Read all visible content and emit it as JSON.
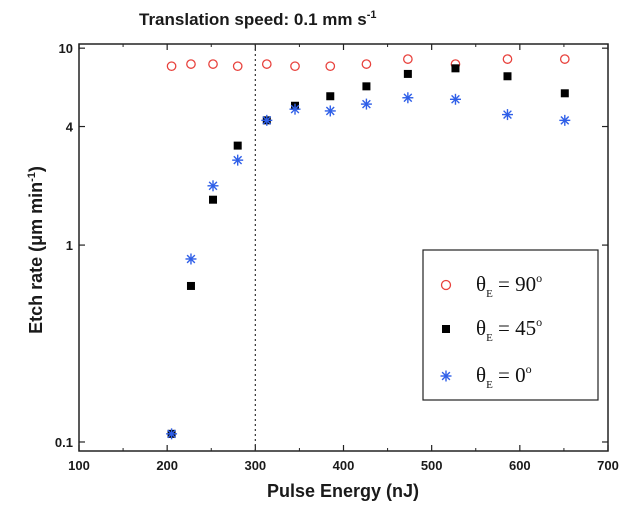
{
  "chart_data": {
    "type": "scatter",
    "title": "Translation speed: 0.1 mm s",
    "title_sup": "-1",
    "xlabel": "Pulse Energy (nJ)",
    "ylabel": "Etch rate (μm min",
    "ylabel_sup": "-1",
    "ylabel_close": ")",
    "xlim": [
      100,
      700
    ],
    "ylim": [
      0.09,
      10.5
    ],
    "yscale": "log",
    "xticks": [
      100,
      200,
      300,
      400,
      500,
      600,
      700
    ],
    "yticks": [
      0.1,
      1,
      4,
      10
    ],
    "yticklabels": [
      "0.1",
      "1",
      "4",
      "10"
    ],
    "vline": 300,
    "grid": false,
    "legend_position": "bottom-right",
    "series": [
      {
        "name": "θE = 90°",
        "marker": "open-circle",
        "color": "#e8413c",
        "legend_main": "θ",
        "legend_sub": "E",
        "legend_eq": " = 90",
        "legend_sup": "o",
        "x": [
          205,
          227,
          252,
          280,
          313,
          345,
          385,
          426,
          473,
          527,
          586,
          651
        ],
        "y": [
          8.1,
          8.3,
          8.3,
          8.1,
          8.3,
          8.1,
          8.1,
          8.3,
          8.8,
          8.3,
          8.8,
          8.8
        ]
      },
      {
        "name": "θE = 45°",
        "marker": "filled-square",
        "color": "#000000",
        "legend_main": "θ",
        "legend_sub": "E",
        "legend_eq": " = 45",
        "legend_sup": "o",
        "x": [
          205,
          227,
          252,
          280,
          313,
          345,
          385,
          426,
          473,
          527,
          586,
          651
        ],
        "y": [
          0.11,
          0.62,
          1.7,
          3.2,
          4.3,
          5.1,
          5.7,
          6.4,
          7.4,
          7.9,
          7.2,
          5.9
        ]
      },
      {
        "name": "θE = 0°",
        "marker": "asterisk",
        "color": "#2f5fe8",
        "legend_main": "θ",
        "legend_sub": "E",
        "legend_eq": " = 0",
        "legend_sup": "o",
        "x": [
          205,
          227,
          252,
          280,
          313,
          345,
          385,
          426,
          473,
          527,
          586,
          651
        ],
        "y": [
          0.11,
          0.85,
          2.0,
          2.7,
          4.3,
          4.9,
          4.8,
          5.2,
          5.6,
          5.5,
          4.6,
          4.3
        ]
      }
    ]
  }
}
